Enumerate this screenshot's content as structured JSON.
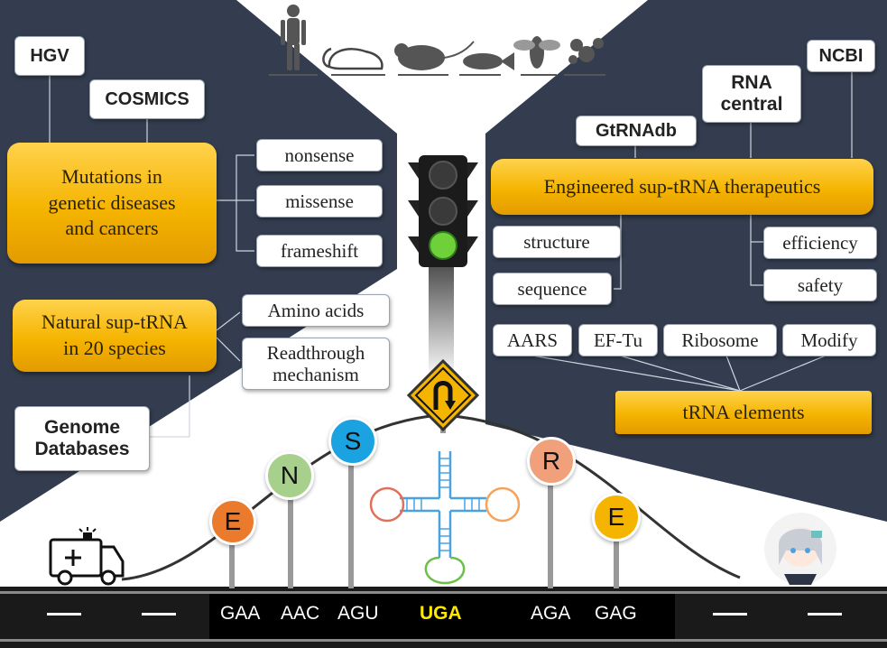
{
  "sources_left": {
    "hgv": "HGV",
    "cosmics": "COSMICS",
    "genome_db": "Genome\nDatabases"
  },
  "sources_right": {
    "gtrnadb": "GtRNAdb",
    "rnacentral": "RNA\ncentral",
    "ncbi": "NCBI"
  },
  "mutations": {
    "title": "Mutations in\ngenetic diseases\nand cancers",
    "types": [
      "nonsense",
      "missense",
      "frameshift"
    ]
  },
  "natural": {
    "title": "Natural sup-tRNA\nin 20 species",
    "items": [
      "Amino acids",
      "Readthrough\nmechanism"
    ]
  },
  "engineered": {
    "title": "Engineered sup-tRNA therapeutics",
    "left": [
      "structure",
      "sequence"
    ],
    "right": [
      "efficiency",
      "safety"
    ]
  },
  "trna_elements": {
    "title": "tRNA elements",
    "items": [
      "AARS",
      "EF-Tu",
      "Ribosome",
      "Modify"
    ]
  },
  "amino_signs": [
    {
      "letter": "E",
      "color": "#ea7a2c"
    },
    {
      "letter": "N",
      "color": "#a8d08d"
    },
    {
      "letter": "S",
      "color": "#1aa3e0"
    },
    {
      "letter": "R",
      "color": "#f0a07a"
    },
    {
      "letter": "E",
      "color": "#f5b400"
    }
  ],
  "codons": [
    "GAA",
    "AAC",
    "AGU",
    "UGA",
    "AGA",
    "GAG"
  ],
  "stop_codon_color": "#ffe800",
  "colors": {
    "panel": "#333d4f",
    "gold": "#f5b400",
    "road": "#1a1a1a"
  },
  "icons": [
    "human-icon",
    "mouse-icon",
    "rat-icon",
    "fish-icon",
    "fly-icon",
    "yeast-icon",
    "traffic-light-icon",
    "u-turn-sign-icon",
    "ambulance-icon",
    "avatar-icon",
    "trna-cloverleaf-icon"
  ]
}
